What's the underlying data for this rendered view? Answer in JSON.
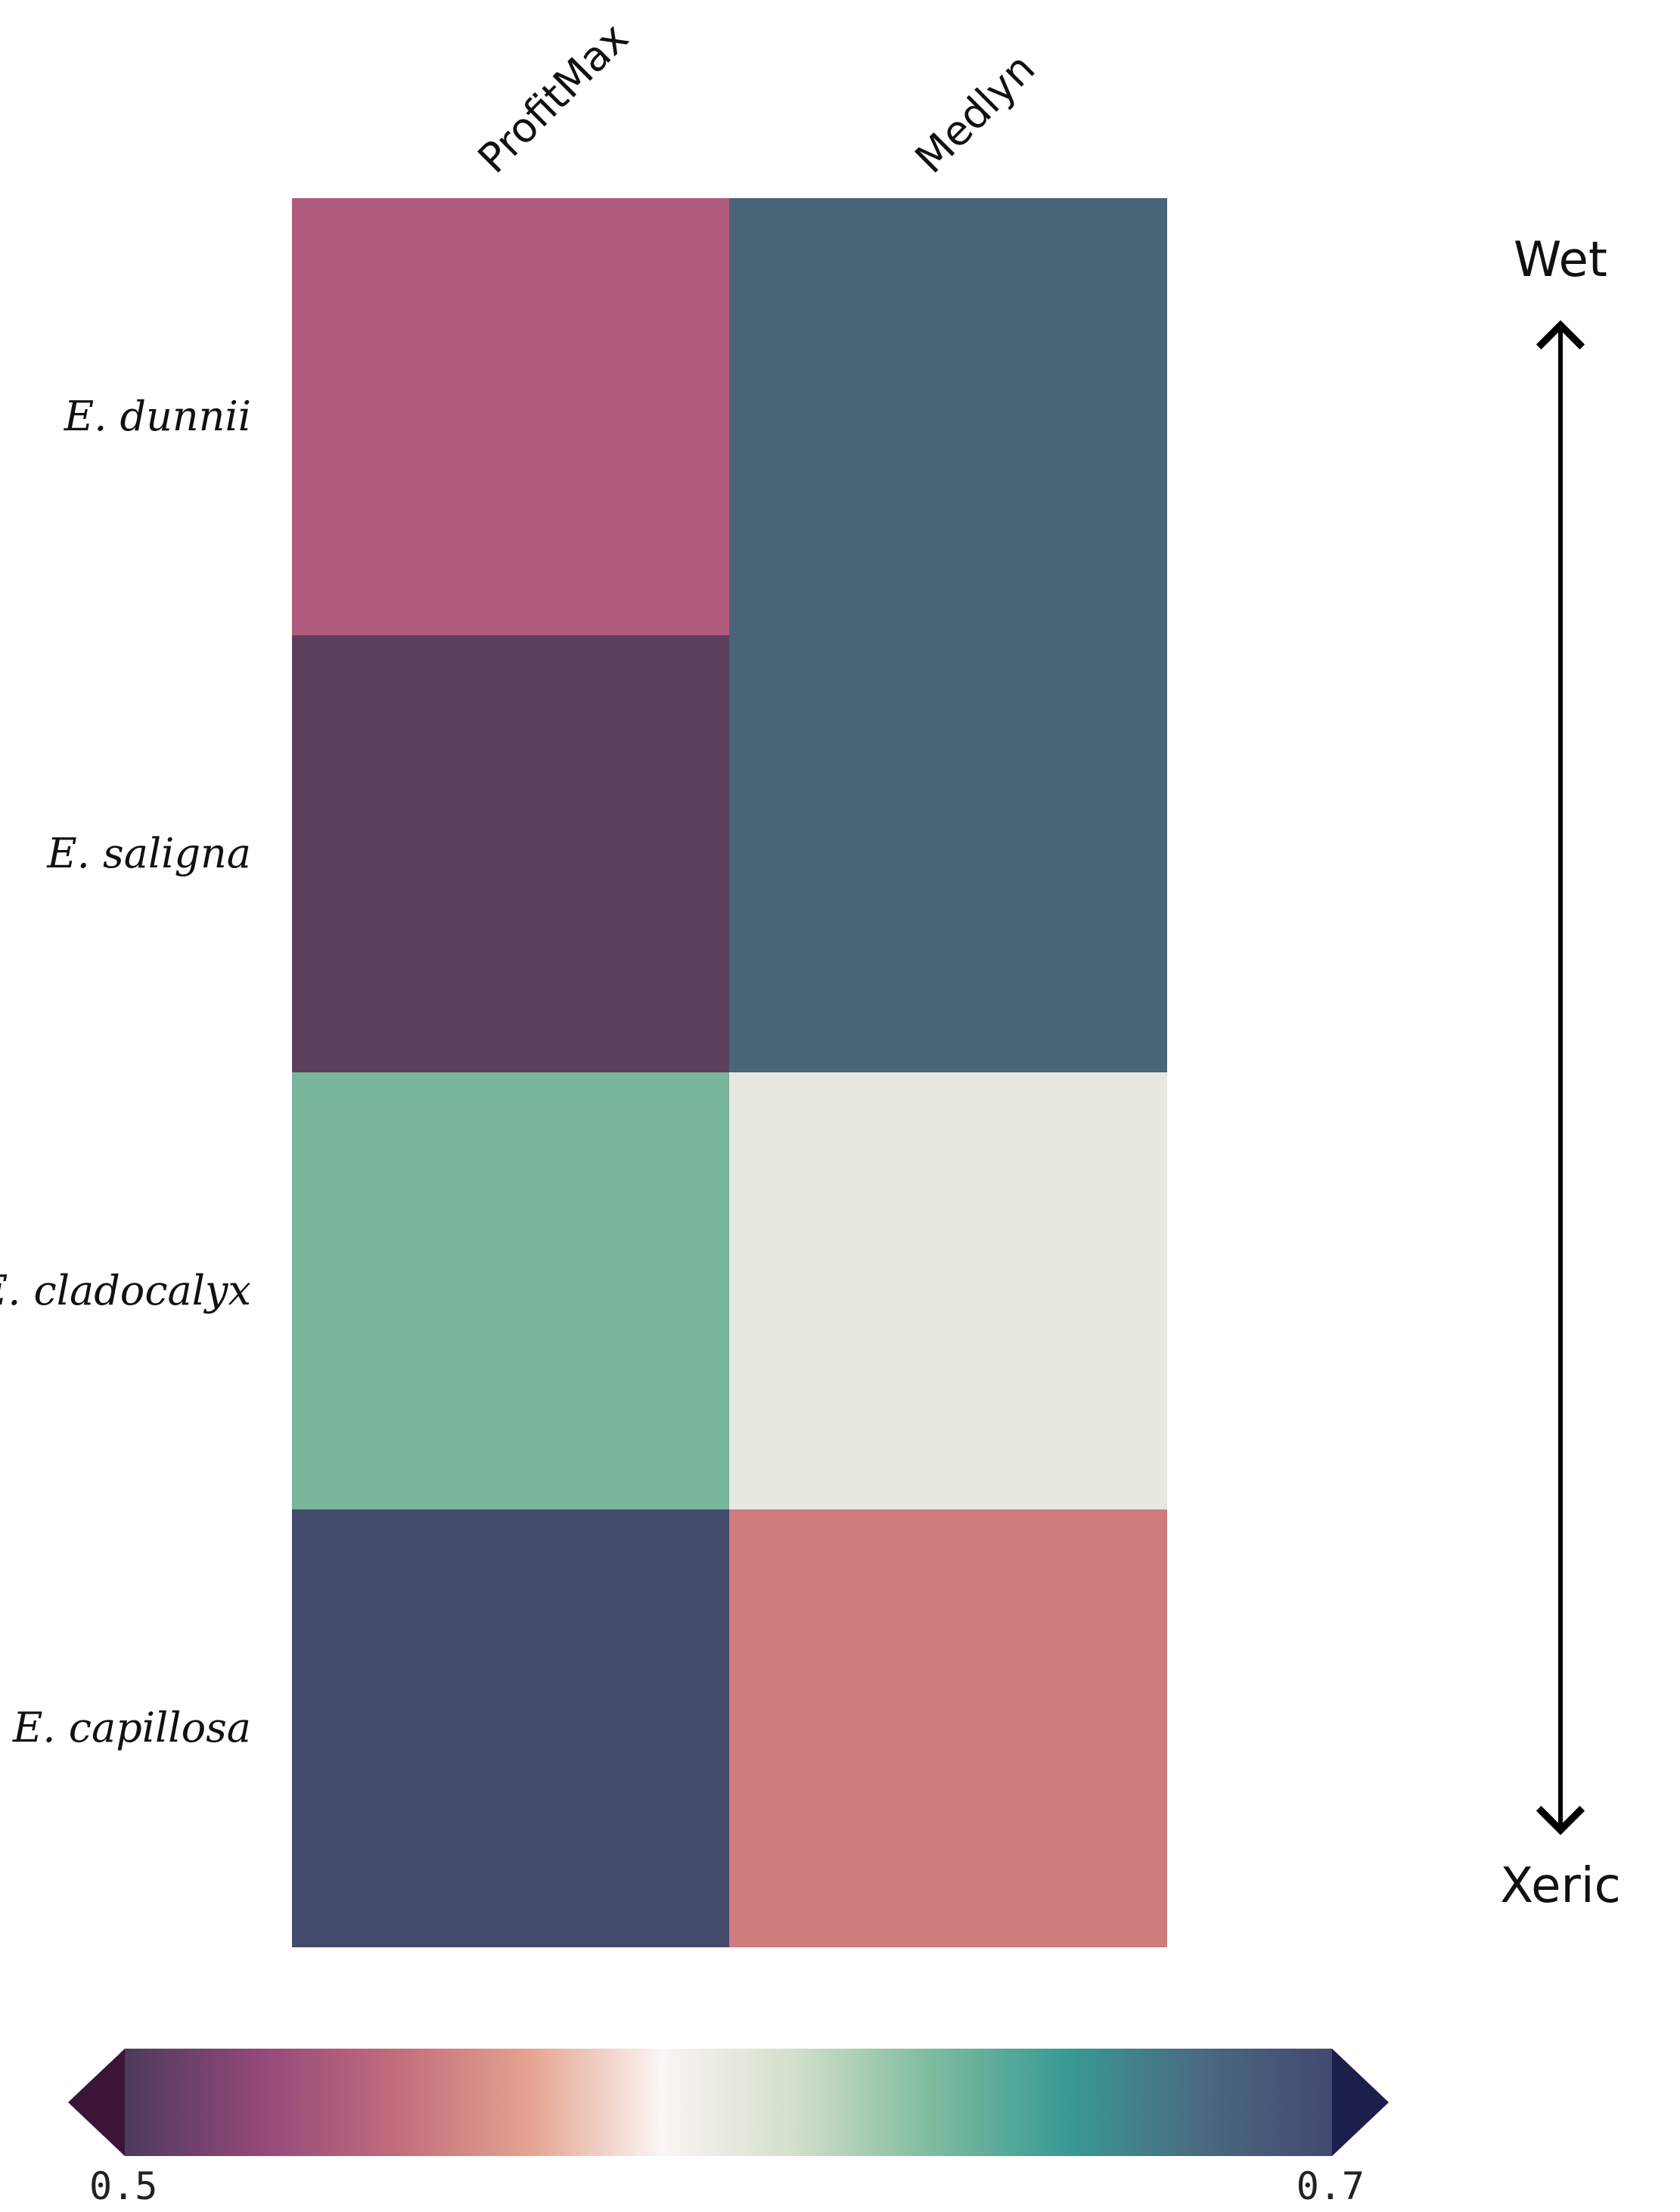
{
  "chart_data": {
    "type": "heatmap",
    "columns": [
      "ProfitMax",
      "Medlyn"
    ],
    "rows": [
      "E. dunnii",
      "E. saligna",
      "E. cladocalyx",
      "E. capillosa"
    ],
    "cell_colors": [
      [
        "#b05a7e",
        "#4a6578"
      ],
      [
        "#5c3f5d",
        "#4a6578"
      ],
      [
        "#78b59a",
        "#e7e8e0"
      ],
      [
        "#434a6a",
        "#cd7b7d"
      ]
    ],
    "gradient_axis": {
      "top_label": "Wet",
      "bottom_label": "Xeric"
    },
    "colorbar": {
      "min_label": "0.5",
      "max_label": "0.7",
      "extend": "both",
      "low_extend_color": "#3b1439",
      "high_extend_color": "#1c1e4b",
      "stops": [
        "#4d3a5c",
        "#924879",
        "#c16b7c",
        "#e4a28e",
        "#fbf5f3",
        "#d2dfcc",
        "#7fbc9e",
        "#389b94",
        "#4a6b80",
        "#434871"
      ]
    }
  }
}
